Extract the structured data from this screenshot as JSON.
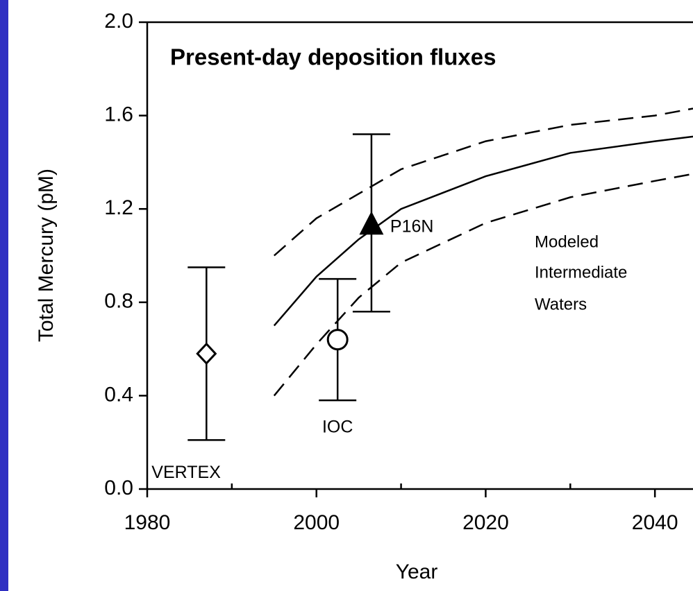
{
  "chart_data": {
    "type": "line",
    "title": "Present-day deposition fluxes",
    "title_color": "#ff0000",
    "x_label": "Year",
    "y_label": "Total Mercury (pM)",
    "annotation": [
      "Modeled",
      "Intermediate",
      "Waters"
    ],
    "xlim": [
      1980,
      2044.5
    ],
    "ylim": [
      0,
      2
    ],
    "xticks": [
      1980,
      2000,
      2020,
      2040
    ],
    "xminor_ticks": [
      1990,
      2010,
      2030
    ],
    "yticks": [
      {
        "value": 0,
        "label": "0.0"
      },
      {
        "value": 0.4,
        "label": "0.4"
      },
      {
        "value": 0.8,
        "label": "0.8"
      },
      {
        "value": 1.2,
        "label": "1.2"
      },
      {
        "value": 1.6,
        "label": "1.6"
      },
      {
        "value": 2,
        "label": "2.0"
      }
    ],
    "curves": [
      {
        "style": "solid",
        "x": [
          1995,
          2000,
          2005,
          2010,
          2020,
          2030,
          2040,
          2044.5
        ],
        "values": [
          0.7,
          0.91,
          1.07,
          1.2,
          1.34,
          1.44,
          1.49,
          1.51
        ]
      },
      {
        "style": "dashed",
        "x": [
          1995,
          2000,
          2010,
          2020,
          2030,
          2040,
          2044.5
        ],
        "values": [
          1.0,
          1.16,
          1.37,
          1.49,
          1.56,
          1.6,
          1.63
        ]
      },
      {
        "style": "dashed",
        "x": [
          1995,
          2000,
          2005,
          2010,
          2020,
          2030,
          2040,
          2044.5
        ],
        "values": [
          0.4,
          0.62,
          0.82,
          0.97,
          1.14,
          1.25,
          1.32,
          1.35
        ]
      }
    ],
    "points": [
      {
        "label": "VERTEX",
        "marker": "diamond",
        "x": 1987,
        "value": 0.58,
        "lower": 0.21,
        "upper": 0.95
      },
      {
        "label": "IOC",
        "marker": "circle",
        "x": 2002.5,
        "value": 0.64,
        "lower": 0.38,
        "upper": 0.9
      },
      {
        "label": "P16N",
        "marker": "triangle",
        "x": 2006.5,
        "value": 1.13,
        "lower": 0.76,
        "upper": 1.52
      }
    ]
  }
}
